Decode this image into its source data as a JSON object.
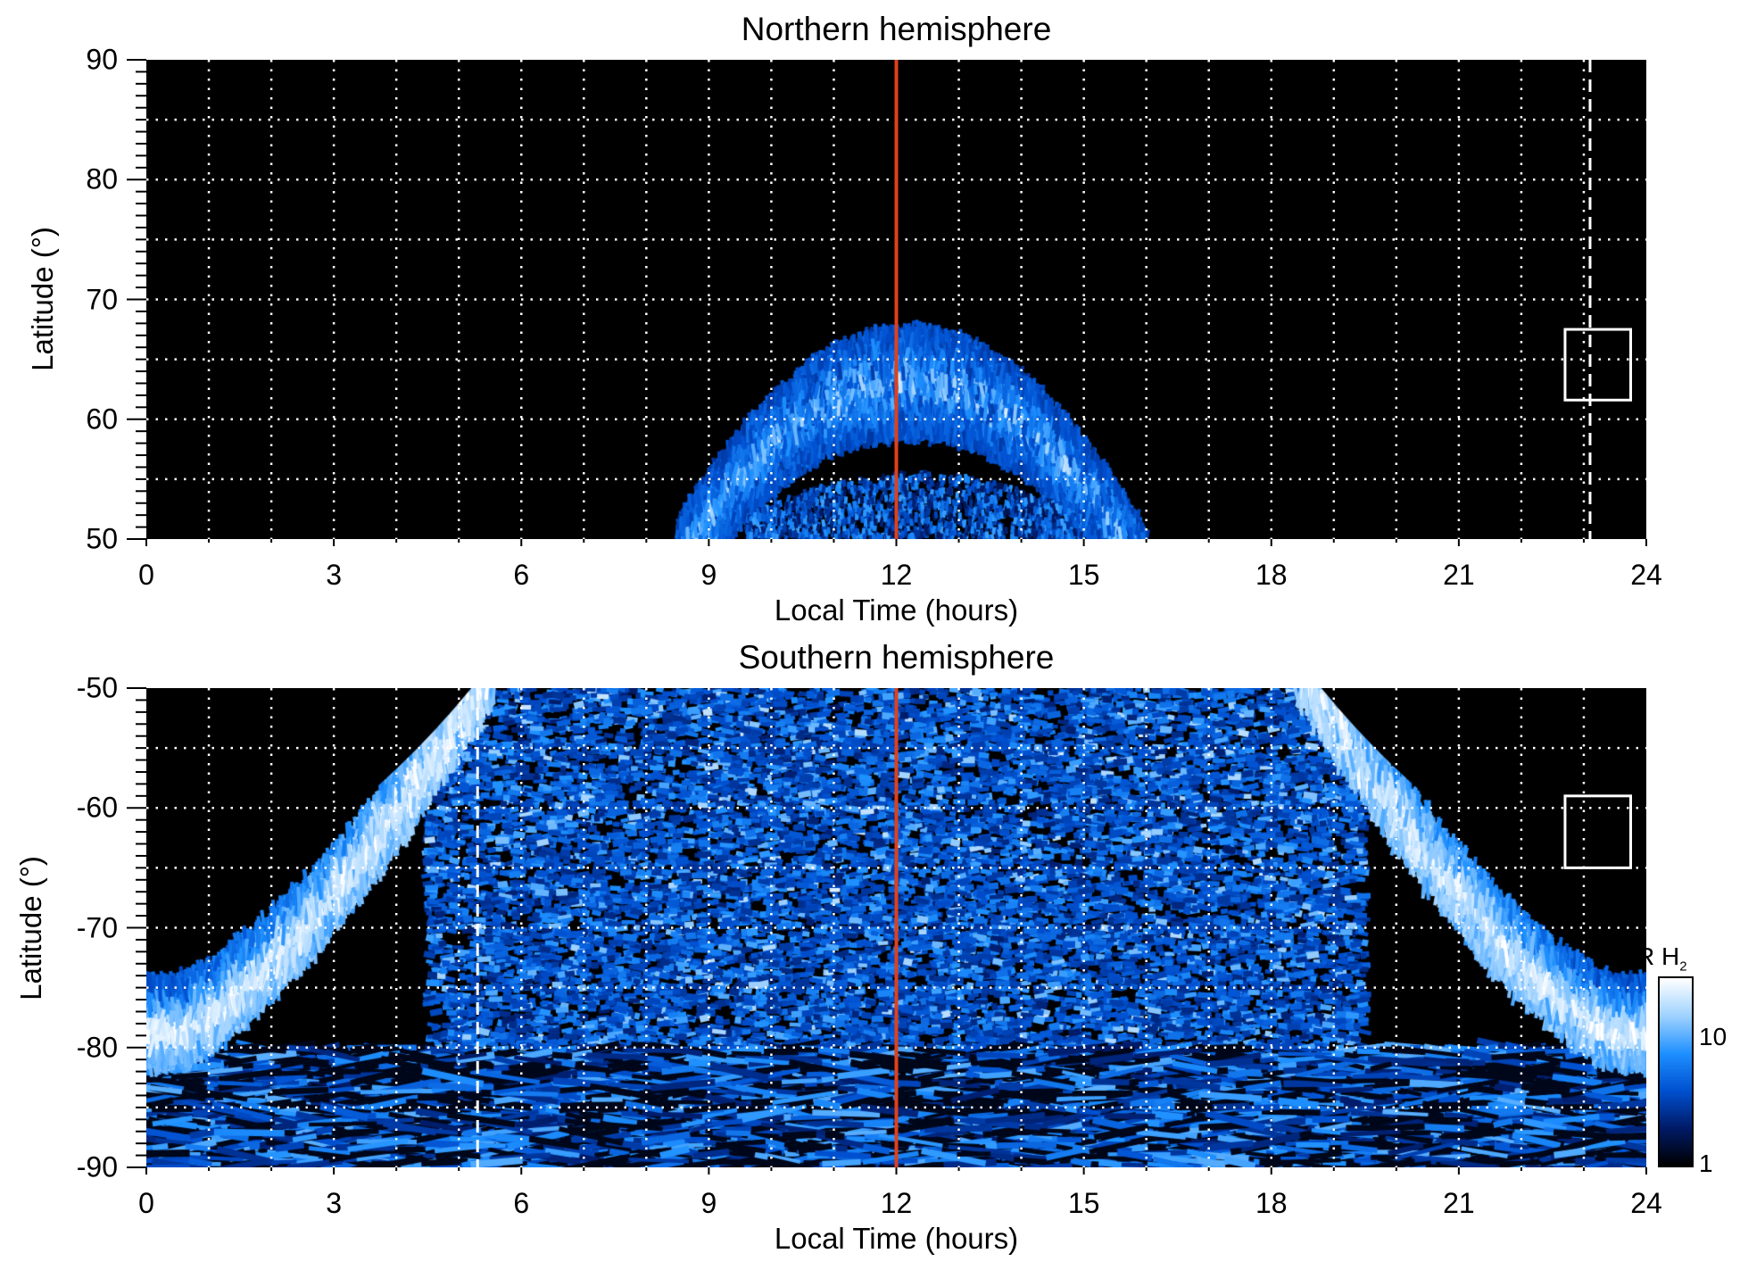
{
  "chart_data": [
    {
      "type": "heatmap",
      "title": "Northern hemisphere",
      "xlabel": "Local Time (hours)",
      "ylabel": "Latitude (°)",
      "xlim": [
        0,
        24
      ],
      "ylim": [
        50,
        90
      ],
      "xticks": [
        "0",
        "3",
        "6",
        "9",
        "12",
        "15",
        "18",
        "21",
        "24"
      ],
      "yticks": [
        "50",
        "60",
        "70",
        "80",
        "90"
      ],
      "ytick_values": [
        50,
        60,
        70,
        80,
        90
      ],
      "grid": {
        "x_step_hours": 1,
        "y_step_deg": 5,
        "style": "dotted white"
      },
      "noon_line_hour": 12,
      "dashed_line_hour": 23.1,
      "box": {
        "lt": [
          22.7,
          23.75
        ],
        "lat": [
          61.6,
          67.5
        ]
      },
      "emission": "auroral arc from ~8.5 h to ~16.2 h LT, poleward edge ~67.5° near noon, equatorward edge ~57° near noon"
    },
    {
      "type": "heatmap",
      "title": "Southern hemisphere",
      "xlabel": "Local Time (hours)",
      "ylabel": "Latitude (°)",
      "xlim": [
        0,
        24
      ],
      "ylim": [
        -90,
        -50
      ],
      "xticks": [
        "0",
        "3",
        "6",
        "9",
        "12",
        "15",
        "18",
        "21",
        "24"
      ],
      "yticks": [
        "-90",
        "-80",
        "-70",
        "-60",
        "-50"
      ],
      "ytick_values": [
        -90,
        -80,
        -70,
        -60,
        -50
      ],
      "grid": {
        "x_step_hours": 1,
        "y_step_deg": 5,
        "style": "dotted white"
      },
      "noon_line_hour": 12,
      "dashed_line_hour": 5.3,
      "box": {
        "lt": [
          22.7,
          23.75
        ],
        "lat": [
          -65,
          -59
        ]
      },
      "emission": "bright auroral oval arcs on dawn (0-5.5 h) and dusk (18.5-24 h) sides from -50° to -80°, diffuse patchy emission across dayside"
    }
  ],
  "colorbar": {
    "label": "kR H",
    "label_sub": "2",
    "scale": "log",
    "range": [
      1,
      30
    ],
    "ticks": [
      "1",
      "10"
    ],
    "tick_values": [
      1,
      10
    ],
    "colors": [
      "#000000",
      "#001a66",
      "#0050d0",
      "#1e90ff",
      "#9fd2ff",
      "#ffffff"
    ]
  },
  "colors": {
    "noon_line": "#e0401a",
    "grid": "#ffffff",
    "background": "#000000"
  }
}
